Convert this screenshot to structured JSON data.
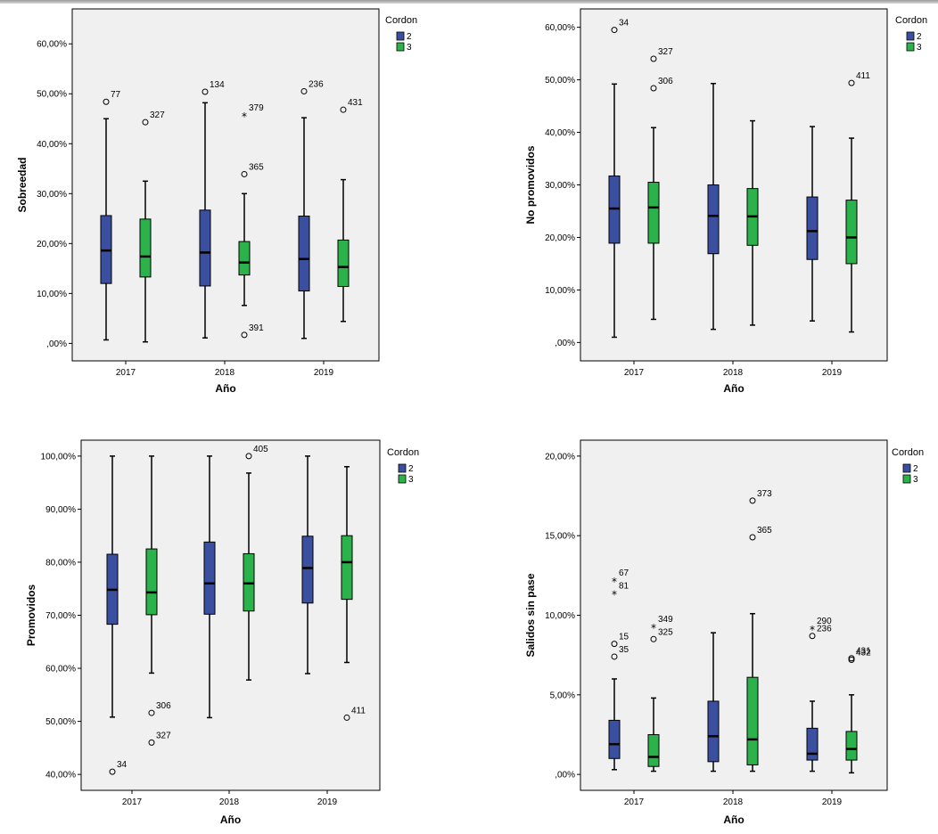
{
  "chart_data": [
    {
      "type": "boxplot",
      "xlabel": "Año",
      "ylabel": "Sobreedad",
      "categories": [
        "2017",
        "2018",
        "2019"
      ],
      "yticks": [
        0,
        10,
        20,
        30,
        40,
        50,
        60
      ],
      "ytick_labels": [
        ",00%",
        "10,00%",
        "20,00%",
        "30,00%",
        "40,00%",
        "50,00%",
        "60,00%"
      ],
      "ylim": [
        -3.5,
        67
      ],
      "legend": {
        "title": "Cordon",
        "items": [
          {
            "name": "2",
            "color": "#3b4fa1"
          },
          {
            "name": "3",
            "color": "#2cb24a"
          }
        ]
      },
      "series": [
        {
          "name": "2",
          "boxes": [
            {
              "category": "2017",
              "min": 0.7,
              "q1": 12,
              "median": 18.6,
              "q3": 25.6,
              "max": 45,
              "outliers": [
                {
                  "value": 48.4,
                  "label": "77",
                  "kind": "circle"
                }
              ]
            },
            {
              "category": "2018",
              "min": 1.1,
              "q1": 11.5,
              "median": 18.2,
              "q3": 26.7,
              "max": 48.2,
              "outliers": [
                {
                  "value": 50.4,
                  "label": "134",
                  "kind": "circle"
                }
              ]
            },
            {
              "category": "2019",
              "min": 1,
              "q1": 10.5,
              "median": 16.9,
              "q3": 25.5,
              "max": 45.2,
              "outliers": [
                {
                  "value": 50.5,
                  "label": "236",
                  "kind": "circle"
                }
              ]
            }
          ]
        },
        {
          "name": "3",
          "boxes": [
            {
              "category": "2017",
              "min": 0.3,
              "q1": 13.3,
              "median": 17.4,
              "q3": 24.9,
              "max": 32.5,
              "outliers": [
                {
                  "value": 44.3,
                  "label": "327",
                  "kind": "circle"
                }
              ]
            },
            {
              "category": "2018",
              "min": 7.6,
              "q1": 13.7,
              "median": 16.2,
              "q3": 20.4,
              "max": 30,
              "outliers": [
                {
                  "value": 45.8,
                  "label": "379",
                  "kind": "star"
                },
                {
                  "value": 33.9,
                  "label": "365",
                  "kind": "circle"
                },
                {
                  "value": 1.7,
                  "label": "391",
                  "kind": "circle"
                }
              ]
            },
            {
              "category": "2019",
              "min": 4.4,
              "q1": 11.4,
              "median": 15.3,
              "q3": 20.7,
              "max": 32.8,
              "outliers": [
                {
                  "value": 46.8,
                  "label": "431",
                  "kind": "circle"
                }
              ]
            }
          ]
        }
      ]
    },
    {
      "type": "boxplot",
      "xlabel": "Año",
      "ylabel": "No promovidos",
      "categories": [
        "2017",
        "2018",
        "2019"
      ],
      "yticks": [
        0,
        10,
        20,
        30,
        40,
        50,
        60
      ],
      "ytick_labels": [
        ",00%",
        "10,00%",
        "20,00%",
        "30,00%",
        "40,00%",
        "50,00%",
        "60,00%"
      ],
      "ylim": [
        -3.5,
        63.5
      ],
      "legend": {
        "title": "Cordon",
        "items": [
          {
            "name": "2",
            "color": "#3b4fa1"
          },
          {
            "name": "3",
            "color": "#2cb24a"
          }
        ]
      },
      "series": [
        {
          "name": "2",
          "boxes": [
            {
              "category": "2017",
              "min": 1,
              "q1": 18.9,
              "median": 25.5,
              "q3": 31.7,
              "max": 49.2,
              "outliers": [
                {
                  "value": 59.5,
                  "label": "34",
                  "kind": "circle"
                }
              ]
            },
            {
              "category": "2018",
              "min": 2.5,
              "q1": 16.9,
              "median": 24.1,
              "q3": 30,
              "max": 49.3,
              "outliers": []
            },
            {
              "category": "2019",
              "min": 4.1,
              "q1": 15.8,
              "median": 21.2,
              "q3": 27.7,
              "max": 41.1,
              "outliers": []
            }
          ]
        },
        {
          "name": "3",
          "boxes": [
            {
              "category": "2017",
              "min": 4.4,
              "q1": 18.9,
              "median": 25.7,
              "q3": 30.5,
              "max": 40.9,
              "outliers": [
                {
                  "value": 54,
                  "label": "327",
                  "kind": "circle"
                },
                {
                  "value": 48.4,
                  "label": "306",
                  "kind": "circle"
                }
              ]
            },
            {
              "category": "2018",
              "min": 3.3,
              "q1": 18.5,
              "median": 24,
              "q3": 29.3,
              "max": 42.2,
              "outliers": []
            },
            {
              "category": "2019",
              "min": 2,
              "q1": 15,
              "median": 20,
              "q3": 27.1,
              "max": 38.9,
              "outliers": [
                {
                  "value": 49.4,
                  "label": "411",
                  "kind": "circle"
                }
              ]
            }
          ]
        }
      ]
    },
    {
      "type": "boxplot",
      "xlabel": "Año",
      "ylabel": "Promovidos",
      "categories": [
        "2017",
        "2018",
        "2019"
      ],
      "yticks": [
        40,
        50,
        60,
        70,
        80,
        90,
        100
      ],
      "ytick_labels": [
        "40,00%",
        "50,00%",
        "60,00%",
        "70,00%",
        "80,00%",
        "90,00%",
        "100,00%"
      ],
      "ylim": [
        37,
        103
      ],
      "legend": {
        "title": "Cordon",
        "items": [
          {
            "name": "2",
            "color": "#3b4fa1"
          },
          {
            "name": "3",
            "color": "#2cb24a"
          }
        ]
      },
      "series": [
        {
          "name": "2",
          "boxes": [
            {
              "category": "2017",
              "min": 50.8,
              "q1": 68.3,
              "median": 74.8,
              "q3": 81.5,
              "max": 100,
              "outliers": [
                {
                  "value": 40.5,
                  "label": "34",
                  "kind": "circle"
                }
              ]
            },
            {
              "category": "2018",
              "min": 50.7,
              "q1": 70.2,
              "median": 76,
              "q3": 83.8,
              "max": 100,
              "outliers": []
            },
            {
              "category": "2019",
              "min": 59,
              "q1": 72.3,
              "median": 78.9,
              "q3": 84.9,
              "max": 100,
              "outliers": []
            }
          ]
        },
        {
          "name": "3",
          "boxes": [
            {
              "category": "2017",
              "min": 59.1,
              "q1": 70.1,
              "median": 74.3,
              "q3": 82.5,
              "max": 100,
              "outliers": [
                {
                  "value": 51.6,
                  "label": "306",
                  "kind": "circle"
                },
                {
                  "value": 46,
                  "label": "327",
                  "kind": "circle"
                }
              ]
            },
            {
              "category": "2018",
              "min": 57.8,
              "q1": 70.8,
              "median": 76,
              "q3": 81.6,
              "max": 96.8,
              "outliers": [
                {
                  "value": 100,
                  "label": "405",
                  "kind": "circle"
                }
              ]
            },
            {
              "category": "2019",
              "min": 61.1,
              "q1": 73,
              "median": 80,
              "q3": 85,
              "max": 98,
              "outliers": [
                {
                  "value": 50.7,
                  "label": "411",
                  "kind": "circle"
                }
              ]
            }
          ]
        }
      ]
    },
    {
      "type": "boxplot",
      "xlabel": "Año",
      "ylabel": "Salidos sin pase",
      "categories": [
        "2017",
        "2018",
        "2019"
      ],
      "yticks": [
        0,
        5,
        10,
        15,
        20
      ],
      "ytick_labels": [
        ",00%",
        "5,00%",
        "10,00%",
        "15,00%",
        "20,00%"
      ],
      "ylim": [
        -1,
        21
      ],
      "legend": {
        "title": "Cordon",
        "items": [
          {
            "name": "2",
            "color": "#3b4fa1"
          },
          {
            "name": "3",
            "color": "#2cb24a"
          }
        ]
      },
      "series": [
        {
          "name": "2",
          "boxes": [
            {
              "category": "2017",
              "min": 0.3,
              "q1": 1,
              "median": 1.9,
              "q3": 3.4,
              "max": 6,
              "outliers": [
                {
                  "value": 12.2,
                  "label": "67",
                  "kind": "star"
                },
                {
                  "value": 11.4,
                  "label": "81",
                  "kind": "star"
                },
                {
                  "value": 8.2,
                  "label": "15",
                  "kind": "circle"
                },
                {
                  "value": 7.4,
                  "label": "35",
                  "kind": "circle"
                }
              ]
            },
            {
              "category": "2018",
              "min": 0.2,
              "q1": 0.8,
              "median": 2.4,
              "q3": 4.6,
              "max": 8.9,
              "outliers": []
            },
            {
              "category": "2019",
              "min": 0.2,
              "q1": 0.9,
              "median": 1.3,
              "q3": 2.9,
              "max": 4.6,
              "outliers": [
                {
                  "value": 9.2,
                  "label": "290",
                  "kind": "star"
                },
                {
                  "value": 8.7,
                  "label": "236",
                  "kind": "circle"
                }
              ]
            }
          ]
        },
        {
          "name": "3",
          "boxes": [
            {
              "category": "2017",
              "min": 0.2,
              "q1": 0.5,
              "median": 1.1,
              "q3": 2.5,
              "max": 4.8,
              "outliers": [
                {
                  "value": 9.3,
                  "label": "349",
                  "kind": "star"
                },
                {
                  "value": 8.5,
                  "label": "325",
                  "kind": "circle"
                }
              ]
            },
            {
              "category": "2018",
              "min": 0.2,
              "q1": 0.6,
              "median": 2.2,
              "q3": 6.1,
              "max": 10.1,
              "outliers": [
                {
                  "value": 17.2,
                  "label": "373",
                  "kind": "circle"
                },
                {
                  "value": 14.9,
                  "label": "365",
                  "kind": "circle"
                }
              ]
            },
            {
              "category": "2019",
              "min": 0.1,
              "q1": 0.9,
              "median": 1.6,
              "q3": 2.7,
              "max": 5,
              "outliers": [
                {
                  "value": 7.3,
                  "label": "431",
                  "kind": "circle"
                },
                {
                  "value": 7.2,
                  "label": "432",
                  "kind": "circle"
                }
              ]
            }
          ]
        }
      ]
    }
  ]
}
